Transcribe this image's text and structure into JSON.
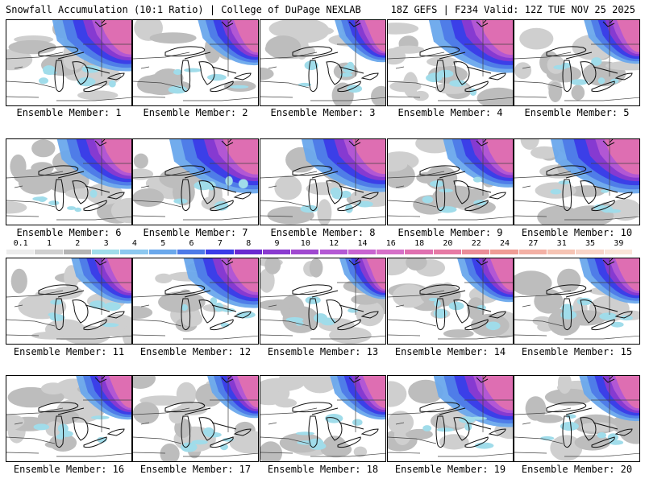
{
  "header": {
    "left_title": "Snowfall Accumulation (10:1 Ratio) | College of DuPage NEXLAB",
    "right_title": "18Z GEFS | F234 Valid: 12Z TUE NOV 25 2025"
  },
  "panels": [
    {
      "label": "Ensemble Member: 1",
      "intensity": 0.8
    },
    {
      "label": "Ensemble Member: 2",
      "intensity": 0.6
    },
    {
      "label": "Ensemble Member: 3",
      "intensity": 0.5
    },
    {
      "label": "Ensemble Member: 4",
      "intensity": 0.85
    },
    {
      "label": "Ensemble Member: 5",
      "intensity": 0.55
    },
    {
      "label": "Ensemble Member: 6",
      "intensity": 0.75
    },
    {
      "label": "Ensemble Member: 7",
      "intensity": 0.9
    },
    {
      "label": "Ensemble Member: 8",
      "intensity": 0.85
    },
    {
      "label": "Ensemble Member: 9",
      "intensity": 0.7
    },
    {
      "label": "Ensemble Member: 10",
      "intensity": 0.9
    },
    {
      "label": "Ensemble Member: 11",
      "intensity": 0.6
    },
    {
      "label": "Ensemble Member: 12",
      "intensity": 0.75
    },
    {
      "label": "Ensemble Member: 13",
      "intensity": 0.45
    },
    {
      "label": "Ensemble Member: 14",
      "intensity": 0.55
    },
    {
      "label": "Ensemble Member: 15",
      "intensity": 0.6
    },
    {
      "label": "Ensemble Member: 16",
      "intensity": 0.55
    },
    {
      "label": "Ensemble Member: 17",
      "intensity": 0.5
    },
    {
      "label": "Ensemble Member: 18",
      "intensity": 0.55
    },
    {
      "label": "Ensemble Member: 19",
      "intensity": 0.8
    },
    {
      "label": "Ensemble Member: 20",
      "intensity": 0.6
    }
  ],
  "colorbar": {
    "labels": [
      "0.1",
      "1",
      "2",
      "3",
      "4",
      "5",
      "6",
      "7",
      "8",
      "9",
      "10",
      "12",
      "14",
      "16",
      "18",
      "20",
      "22",
      "24",
      "27",
      "31",
      "35",
      "39"
    ],
    "colors": [
      "#ececec",
      "#d0d0d0",
      "#b4b4b4",
      "#a0dcea",
      "#8cc8f0",
      "#6aa8ec",
      "#4d7ae8",
      "#3a3ce8",
      "#6a2ad0",
      "#8a3ad0",
      "#a048d0",
      "#b458d4",
      "#c864d0",
      "#d670c8",
      "#e070b0",
      "#e67aa4",
      "#ea8c98",
      "#ef9c94",
      "#f3b0a4",
      "#f6c4b4",
      "#f8d4c8",
      "#fae4d8"
    ]
  }
}
